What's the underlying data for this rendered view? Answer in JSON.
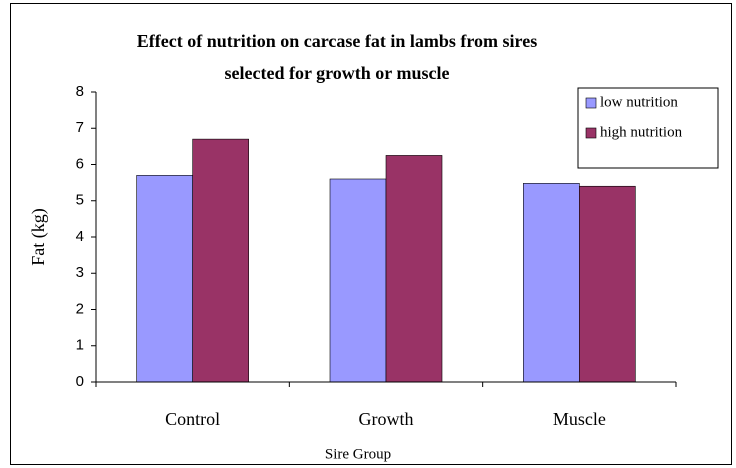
{
  "chart_data": {
    "type": "bar",
    "title": [
      "Effect of nutrition on carcase fat in lambs from sires",
      "selected for growth or muscle"
    ],
    "x_label": "Sire Group",
    "y_label": "Fat (kg)",
    "categories": [
      "Control",
      "Growth",
      "Muscle"
    ],
    "series": [
      {
        "name": "low nutrition",
        "color": "#9999ff",
        "values": [
          5.7,
          5.6,
          5.48
        ]
      },
      {
        "name": "high nutrition",
        "color": "#993366",
        "values": [
          6.7,
          6.25,
          5.4
        ]
      }
    ],
    "ylim": [
      0,
      8
    ],
    "yticks": [
      0,
      1,
      2,
      3,
      4,
      5,
      6,
      7,
      8
    ],
    "grid": false,
    "legend": "top-right"
  }
}
